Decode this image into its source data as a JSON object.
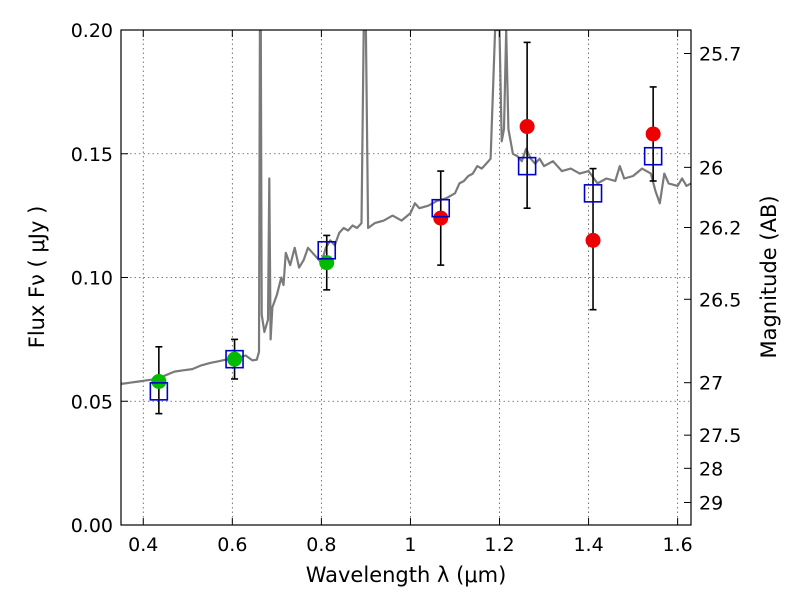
{
  "chart_data": {
    "type": "scatter",
    "xlabel": "Wavelength  λ (μm)",
    "ylabel": "Flux  Fν  ( μJy )",
    "ylabel_right": "Magnitude (AB)",
    "xlim": [
      0.35,
      1.63
    ],
    "ylim": [
      0.0,
      0.2
    ],
    "grid": true,
    "x_ticks": [
      {
        "value": 0.4,
        "label": "0.4"
      },
      {
        "value": 0.6,
        "label": "0.6"
      },
      {
        "value": 0.8,
        "label": "0.8"
      },
      {
        "value": 1.0,
        "label": "1"
      },
      {
        "value": 1.2,
        "label": "1.2"
      },
      {
        "value": 1.4,
        "label": "1.4"
      },
      {
        "value": 1.6,
        "label": "1.6"
      }
    ],
    "y_ticks": [
      {
        "value": 0.0,
        "label": "0.00"
      },
      {
        "value": 0.05,
        "label": "0.05"
      },
      {
        "value": 0.1,
        "label": "0.10"
      },
      {
        "value": 0.15,
        "label": "0.15"
      },
      {
        "value": 0.2,
        "label": "0.20"
      }
    ],
    "right_ticks": [
      {
        "flux": 0.1905,
        "label": "25.7"
      },
      {
        "flux": 0.1445,
        "label": "26"
      },
      {
        "flux": 0.1202,
        "label": "26.2"
      },
      {
        "flux": 0.0912,
        "label": "26.5"
      },
      {
        "flux": 0.0575,
        "label": "27"
      },
      {
        "flux": 0.0363,
        "label": "27.5"
      },
      {
        "flux": 0.0229,
        "label": "28"
      },
      {
        "flux": 0.0091,
        "label": "29"
      }
    ],
    "colors": {
      "spectrum": "#7a7a7a",
      "model_marker": "#0000cc",
      "obs_green": "#00bb00",
      "obs_red": "#ee0000",
      "errorbar": "#000000",
      "grid": "#555555"
    },
    "spectrum": [
      [
        0.35,
        0.057
      ],
      [
        0.37,
        0.0575
      ],
      [
        0.39,
        0.058
      ],
      [
        0.41,
        0.0585
      ],
      [
        0.43,
        0.059
      ],
      [
        0.45,
        0.0605
      ],
      [
        0.47,
        0.062
      ],
      [
        0.49,
        0.0625
      ],
      [
        0.51,
        0.063
      ],
      [
        0.53,
        0.0645
      ],
      [
        0.55,
        0.0655
      ],
      [
        0.57,
        0.0662
      ],
      [
        0.59,
        0.067
      ],
      [
        0.61,
        0.0675
      ],
      [
        0.63,
        0.0685
      ],
      [
        0.645,
        0.0665
      ],
      [
        0.655,
        0.0668
      ],
      [
        0.66,
        0.07
      ],
      [
        0.662,
        0.2
      ],
      [
        0.664,
        0.2
      ],
      [
        0.666,
        0.085
      ],
      [
        0.672,
        0.078
      ],
      [
        0.68,
        0.083
      ],
      [
        0.683,
        0.14
      ],
      [
        0.686,
        0.075
      ],
      [
        0.69,
        0.088
      ],
      [
        0.7,
        0.093
      ],
      [
        0.71,
        0.1
      ],
      [
        0.715,
        0.097
      ],
      [
        0.72,
        0.11
      ],
      [
        0.73,
        0.105
      ],
      [
        0.74,
        0.112
      ],
      [
        0.75,
        0.104
      ],
      [
        0.76,
        0.107
      ],
      [
        0.77,
        0.112
      ],
      [
        0.78,
        0.11
      ],
      [
        0.79,
        0.108
      ],
      [
        0.8,
        0.106
      ],
      [
        0.81,
        0.112
      ],
      [
        0.82,
        0.115
      ],
      [
        0.83,
        0.113
      ],
      [
        0.84,
        0.118
      ],
      [
        0.85,
        0.12
      ],
      [
        0.86,
        0.119
      ],
      [
        0.87,
        0.121
      ],
      [
        0.88,
        0.12
      ],
      [
        0.89,
        0.122
      ],
      [
        0.895,
        0.2
      ],
      [
        0.9,
        0.2
      ],
      [
        0.905,
        0.12
      ],
      [
        0.92,
        0.122
      ],
      [
        0.94,
        0.123
      ],
      [
        0.96,
        0.125
      ],
      [
        0.98,
        0.123
      ],
      [
        1.0,
        0.126
      ],
      [
        1.01,
        0.13
      ],
      [
        1.02,
        0.128
      ],
      [
        1.04,
        0.129
      ],
      [
        1.06,
        0.131
      ],
      [
        1.08,
        0.132
      ],
      [
        1.1,
        0.134
      ],
      [
        1.11,
        0.138
      ],
      [
        1.12,
        0.139
      ],
      [
        1.13,
        0.141
      ],
      [
        1.14,
        0.142
      ],
      [
        1.15,
        0.145
      ],
      [
        1.16,
        0.144
      ],
      [
        1.17,
        0.146
      ],
      [
        1.18,
        0.148
      ],
      [
        1.19,
        0.2
      ],
      [
        1.2,
        0.2
      ],
      [
        1.205,
        0.155
      ],
      [
        1.21,
        0.16
      ],
      [
        1.215,
        0.2
      ],
      [
        1.22,
        0.16
      ],
      [
        1.23,
        0.15
      ],
      [
        1.24,
        0.149
      ],
      [
        1.25,
        0.147
      ],
      [
        1.26,
        0.152
      ],
      [
        1.27,
        0.148
      ],
      [
        1.28,
        0.146
      ],
      [
        1.29,
        0.148
      ],
      [
        1.3,
        0.145
      ],
      [
        1.32,
        0.147
      ],
      [
        1.34,
        0.143
      ],
      [
        1.36,
        0.144
      ],
      [
        1.38,
        0.142
      ],
      [
        1.4,
        0.143
      ],
      [
        1.42,
        0.138
      ],
      [
        1.44,
        0.14
      ],
      [
        1.46,
        0.139
      ],
      [
        1.47,
        0.145
      ],
      [
        1.48,
        0.14
      ],
      [
        1.5,
        0.141
      ],
      [
        1.52,
        0.144
      ],
      [
        1.54,
        0.142
      ],
      [
        1.55,
        0.135
      ],
      [
        1.56,
        0.13
      ],
      [
        1.57,
        0.142
      ],
      [
        1.58,
        0.138
      ],
      [
        1.6,
        0.137
      ],
      [
        1.61,
        0.14
      ],
      [
        1.62,
        0.137
      ],
      [
        1.63,
        0.138
      ]
    ],
    "model_points": [
      {
        "x": 0.435,
        "y": 0.054
      },
      {
        "x": 0.605,
        "y": 0.067
      },
      {
        "x": 0.812,
        "y": 0.111
      },
      {
        "x": 1.068,
        "y": 0.128
      },
      {
        "x": 1.262,
        "y": 0.145
      },
      {
        "x": 1.41,
        "y": 0.134
      },
      {
        "x": 1.545,
        "y": 0.149
      }
    ],
    "observed_points": [
      {
        "x": 0.435,
        "y": 0.058,
        "yerr_low": 0.045,
        "yerr_high": 0.072,
        "color": "green"
      },
      {
        "x": 0.605,
        "y": 0.067,
        "yerr_low": 0.059,
        "yerr_high": 0.075,
        "color": "green"
      },
      {
        "x": 0.812,
        "y": 0.106,
        "yerr_low": 0.095,
        "yerr_high": 0.117,
        "color": "green"
      },
      {
        "x": 1.068,
        "y": 0.124,
        "yerr_low": 0.105,
        "yerr_high": 0.143,
        "color": "red"
      },
      {
        "x": 1.262,
        "y": 0.161,
        "yerr_low": 0.128,
        "yerr_high": 0.195,
        "color": "red"
      },
      {
        "x": 1.41,
        "y": 0.115,
        "yerr_low": 0.087,
        "yerr_high": 0.144,
        "color": "red"
      },
      {
        "x": 1.545,
        "y": 0.158,
        "yerr_low": 0.139,
        "yerr_high": 0.177,
        "color": "red"
      }
    ]
  }
}
